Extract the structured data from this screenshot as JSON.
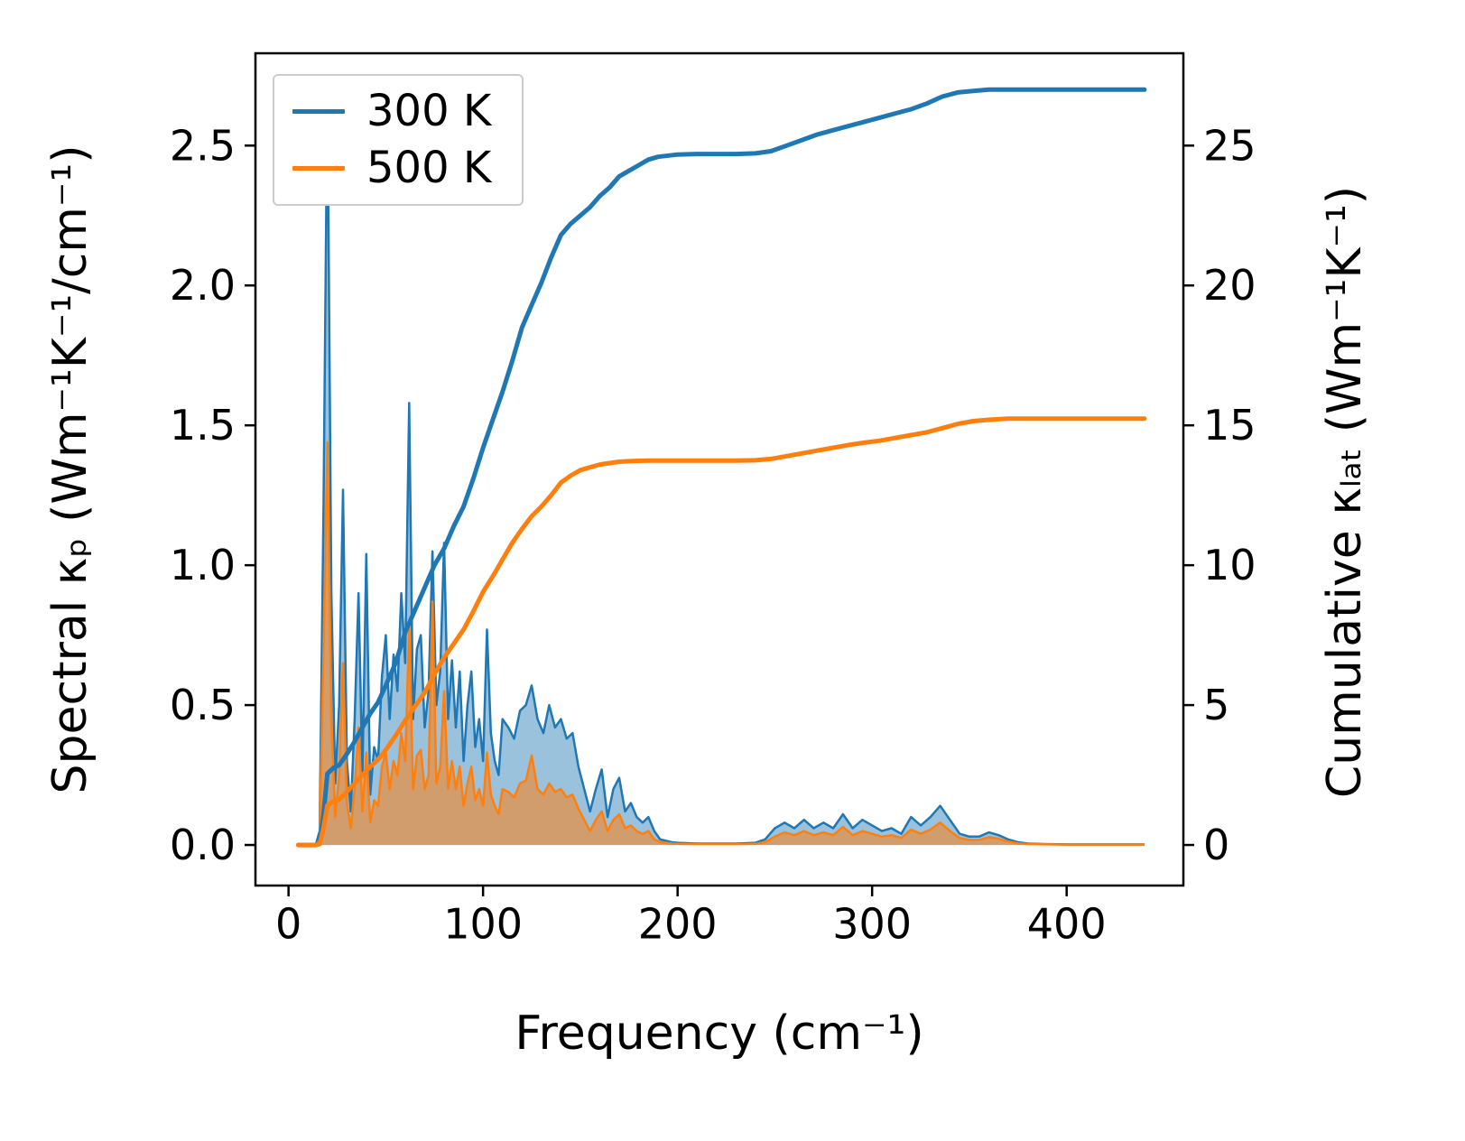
{
  "figure": {
    "background_color": "#ffffff",
    "xlabel": "Frequency (cm⁻¹)",
    "ylabel_left": "Spectral κₚ (Wm⁻¹K⁻¹/cm⁻¹)",
    "ylabel_right": "Cumulative κₗₐₜ (Wm⁻¹K⁻¹)",
    "legend": {
      "position": "upper-left",
      "items": [
        {
          "label": "300 K",
          "color": "#1f77b4"
        },
        {
          "label": "500 K",
          "color": "#ff7f0e"
        }
      ]
    }
  },
  "chart_data": {
    "type": "area",
    "subtype": "spectral-and-cumulative-thermal-conductivity, dual y-axis",
    "title": "",
    "xlabel": "Frequency (cm⁻¹)",
    "ylabel_left": "Spectral κₚ (Wm⁻¹K⁻¹/cm⁻¹)",
    "ylabel_right": "Cumulative κₗₐₜ (Wm⁻¹K⁻¹)",
    "grid": false,
    "legend_position": "upper-left",
    "xlim": [
      -17,
      460
    ],
    "ylim_left": [
      -0.145,
      2.83
    ],
    "ylim_right": [
      -1.45,
      28.3
    ],
    "xticks": {
      "values": [
        0,
        100,
        200,
        300,
        400
      ],
      "labels": [
        "0",
        "100",
        "200",
        "300",
        "400"
      ]
    },
    "yticks_left": {
      "values": [
        0,
        0.5,
        1,
        1.5,
        2,
        2.5
      ],
      "labels": [
        "0.0",
        "0.5",
        "1.0",
        "1.5",
        "2.0",
        "2.5"
      ]
    },
    "yticks_right": {
      "values": [
        0,
        5,
        10,
        15,
        20,
        25
      ],
      "labels": [
        "0",
        "5",
        "10",
        "15",
        "20",
        "25"
      ]
    },
    "series": [
      {
        "name": "spectral-300K",
        "legend": "300 K",
        "style": "area",
        "axis": "left",
        "color": "#1f77b4",
        "fill_opacity": 0.45,
        "line_width": 2.5,
        "x": [
          5,
          10,
          14,
          16,
          18,
          20,
          22,
          24,
          26,
          28,
          30,
          32,
          34,
          36,
          38,
          40,
          42,
          44,
          46,
          48,
          50,
          52,
          54,
          56,
          58,
          60,
          62,
          64,
          66,
          68,
          70,
          72,
          74,
          76,
          78,
          80,
          82,
          84,
          86,
          88,
          90,
          92,
          94,
          96,
          98,
          100,
          102,
          104,
          106,
          108,
          110,
          113,
          116,
          119,
          122,
          125,
          128,
          131,
          134,
          137,
          140,
          143,
          146,
          149,
          152,
          155,
          158,
          161,
          164,
          167,
          170,
          173,
          176,
          179,
          182,
          185,
          188,
          191,
          194,
          197,
          200,
          210,
          220,
          230,
          240,
          245,
          250,
          255,
          260,
          265,
          270,
          275,
          280,
          285,
          290,
          295,
          300,
          305,
          310,
          315,
          320,
          325,
          330,
          335,
          340,
          345,
          350,
          355,
          360,
          365,
          370,
          375,
          380,
          390,
          400,
          420,
          440
        ],
        "y": [
          0,
          0,
          0,
          0.05,
          1.2,
          2.72,
          0.9,
          0.22,
          0.5,
          1.27,
          0.3,
          0.12,
          0.45,
          0.9,
          0.25,
          1.04,
          0.18,
          0.35,
          0.3,
          0.6,
          0.75,
          0.45,
          0.68,
          0.55,
          0.9,
          0.65,
          1.58,
          0.45,
          0.7,
          0.75,
          0.42,
          0.55,
          1.05,
          0.5,
          0.62,
          1.08,
          0.45,
          0.66,
          0.42,
          0.62,
          0.3,
          0.5,
          0.62,
          0.35,
          0.45,
          0.3,
          0.77,
          0.4,
          0.3,
          0.25,
          0.45,
          0.42,
          0.38,
          0.48,
          0.5,
          0.57,
          0.45,
          0.4,
          0.5,
          0.42,
          0.45,
          0.38,
          0.4,
          0.28,
          0.2,
          0.12,
          0.2,
          0.27,
          0.1,
          0.2,
          0.24,
          0.12,
          0.15,
          0.1,
          0.08,
          0.1,
          0.05,
          0.02,
          0.015,
          0.01,
          0.008,
          0.005,
          0.005,
          0.005,
          0.008,
          0.02,
          0.06,
          0.08,
          0.06,
          0.09,
          0.06,
          0.08,
          0.06,
          0.11,
          0.06,
          0.09,
          0.07,
          0.05,
          0.06,
          0.04,
          0.1,
          0.07,
          0.1,
          0.14,
          0.09,
          0.04,
          0.03,
          0.03,
          0.045,
          0.035,
          0.02,
          0.01,
          0.005,
          0.003,
          0.002,
          0.002,
          0.002
        ]
      },
      {
        "name": "spectral-500K",
        "legend": "500 K",
        "style": "area",
        "axis": "left",
        "color": "#ff7f0e",
        "fill_opacity": 0.55,
        "line_width": 2.5,
        "x": [
          5,
          10,
          14,
          16,
          18,
          20,
          22,
          24,
          26,
          28,
          30,
          32,
          34,
          36,
          38,
          40,
          42,
          44,
          46,
          48,
          50,
          52,
          54,
          56,
          58,
          60,
          62,
          64,
          66,
          68,
          70,
          72,
          74,
          76,
          78,
          80,
          82,
          84,
          86,
          88,
          90,
          92,
          94,
          96,
          98,
          100,
          102,
          104,
          106,
          108,
          110,
          113,
          116,
          119,
          122,
          125,
          128,
          131,
          134,
          137,
          140,
          143,
          146,
          149,
          152,
          155,
          158,
          161,
          164,
          167,
          170,
          173,
          176,
          179,
          182,
          185,
          188,
          191,
          194,
          197,
          200,
          210,
          220,
          230,
          240,
          245,
          250,
          255,
          260,
          265,
          270,
          275,
          280,
          285,
          290,
          295,
          300,
          305,
          310,
          315,
          320,
          325,
          330,
          335,
          340,
          345,
          350,
          355,
          360,
          365,
          370,
          375,
          380,
          390,
          400,
          420,
          440
        ],
        "y": [
          0,
          0,
          0,
          0.02,
          0.7,
          1.44,
          0.45,
          0.1,
          0.25,
          0.65,
          0.15,
          0.06,
          0.2,
          0.42,
          0.12,
          0.33,
          0.08,
          0.16,
          0.14,
          0.28,
          0.33,
          0.2,
          0.3,
          0.25,
          0.4,
          0.3,
          0.78,
          0.2,
          0.32,
          0.34,
          0.2,
          0.25,
          0.87,
          0.22,
          0.28,
          0.55,
          0.2,
          0.3,
          0.2,
          0.28,
          0.14,
          0.22,
          0.28,
          0.16,
          0.2,
          0.14,
          0.33,
          0.18,
          0.14,
          0.11,
          0.2,
          0.19,
          0.17,
          0.22,
          0.23,
          0.32,
          0.2,
          0.18,
          0.22,
          0.19,
          0.2,
          0.17,
          0.18,
          0.13,
          0.09,
          0.05,
          0.09,
          0.12,
          0.05,
          0.09,
          0.11,
          0.06,
          0.07,
          0.05,
          0.04,
          0.05,
          0.02,
          0.01,
          0.008,
          0.005,
          0.004,
          0.003,
          0.003,
          0.003,
          0.004,
          0.01,
          0.03,
          0.045,
          0.035,
          0.05,
          0.035,
          0.045,
          0.035,
          0.065,
          0.035,
          0.05,
          0.04,
          0.03,
          0.035,
          0.025,
          0.055,
          0.04,
          0.055,
          0.08,
          0.05,
          0.025,
          0.018,
          0.018,
          0.028,
          0.022,
          0.012,
          0.006,
          0.003,
          0.002,
          0.001,
          0.001,
          0.001
        ]
      },
      {
        "name": "cumulative-300K",
        "legend": "300 K",
        "style": "line",
        "axis": "right",
        "color": "#1f77b4",
        "line_width": 5,
        "x": [
          5,
          14,
          16,
          18,
          20,
          23,
          26,
          30,
          34,
          38,
          42,
          46,
          50,
          55,
          60,
          65,
          70,
          75,
          80,
          85,
          90,
          95,
          100,
          105,
          110,
          115,
          120,
          125,
          130,
          135,
          140,
          145,
          150,
          155,
          160,
          165,
          170,
          175,
          180,
          185,
          190,
          200,
          210,
          220,
          230,
          240,
          248,
          256,
          264,
          272,
          280,
          288,
          296,
          304,
          312,
          320,
          328,
          336,
          344,
          352,
          360,
          370,
          380,
          400,
          440
        ],
        "y": [
          0,
          0,
          0.05,
          1.1,
          2.55,
          2.75,
          2.85,
          3.25,
          3.7,
          4.2,
          4.7,
          5.1,
          5.7,
          6.5,
          7.6,
          8.4,
          9.2,
          10.0,
          10.6,
          11.4,
          12.1,
          13.1,
          14.2,
          15.2,
          16.2,
          17.3,
          18.5,
          19.3,
          20.1,
          21.0,
          21.8,
          22.2,
          22.5,
          22.8,
          23.2,
          23.5,
          23.9,
          24.1,
          24.3,
          24.5,
          24.6,
          24.68,
          24.7,
          24.7,
          24.7,
          24.72,
          24.8,
          25.0,
          25.2,
          25.4,
          25.55,
          25.7,
          25.85,
          26.0,
          26.15,
          26.3,
          26.5,
          26.75,
          26.9,
          26.95,
          27.0,
          27.0,
          27.0,
          27.0,
          27.0
        ]
      },
      {
        "name": "cumulative-500K",
        "legend": "500 K",
        "style": "line",
        "axis": "right",
        "color": "#ff7f0e",
        "line_width": 5,
        "x": [
          5,
          14,
          16,
          18,
          20,
          23,
          26,
          30,
          34,
          38,
          42,
          46,
          50,
          55,
          60,
          65,
          70,
          75,
          80,
          85,
          90,
          95,
          100,
          105,
          110,
          115,
          120,
          125,
          130,
          135,
          140,
          145,
          150,
          155,
          160,
          165,
          170,
          175,
          180,
          185,
          190,
          200,
          210,
          220,
          230,
          240,
          248,
          256,
          264,
          272,
          280,
          288,
          296,
          304,
          312,
          320,
          328,
          336,
          344,
          352,
          360,
          370,
          380,
          400,
          440
        ],
        "y": [
          0,
          0,
          0.03,
          0.6,
          1.42,
          1.55,
          1.62,
          1.9,
          2.2,
          2.5,
          2.8,
          3.05,
          3.4,
          3.9,
          4.45,
          4.95,
          5.45,
          6.1,
          6.7,
          7.2,
          7.7,
          8.35,
          9.05,
          9.6,
          10.2,
          10.8,
          11.3,
          11.75,
          12.1,
          12.5,
          12.95,
          13.2,
          13.4,
          13.5,
          13.6,
          13.65,
          13.7,
          13.72,
          13.73,
          13.74,
          13.74,
          13.74,
          13.74,
          13.74,
          13.74,
          13.75,
          13.8,
          13.9,
          14.0,
          14.1,
          14.2,
          14.3,
          14.38,
          14.45,
          14.55,
          14.65,
          14.75,
          14.9,
          15.05,
          15.15,
          15.2,
          15.24,
          15.24,
          15.24,
          15.24
        ]
      }
    ]
  }
}
